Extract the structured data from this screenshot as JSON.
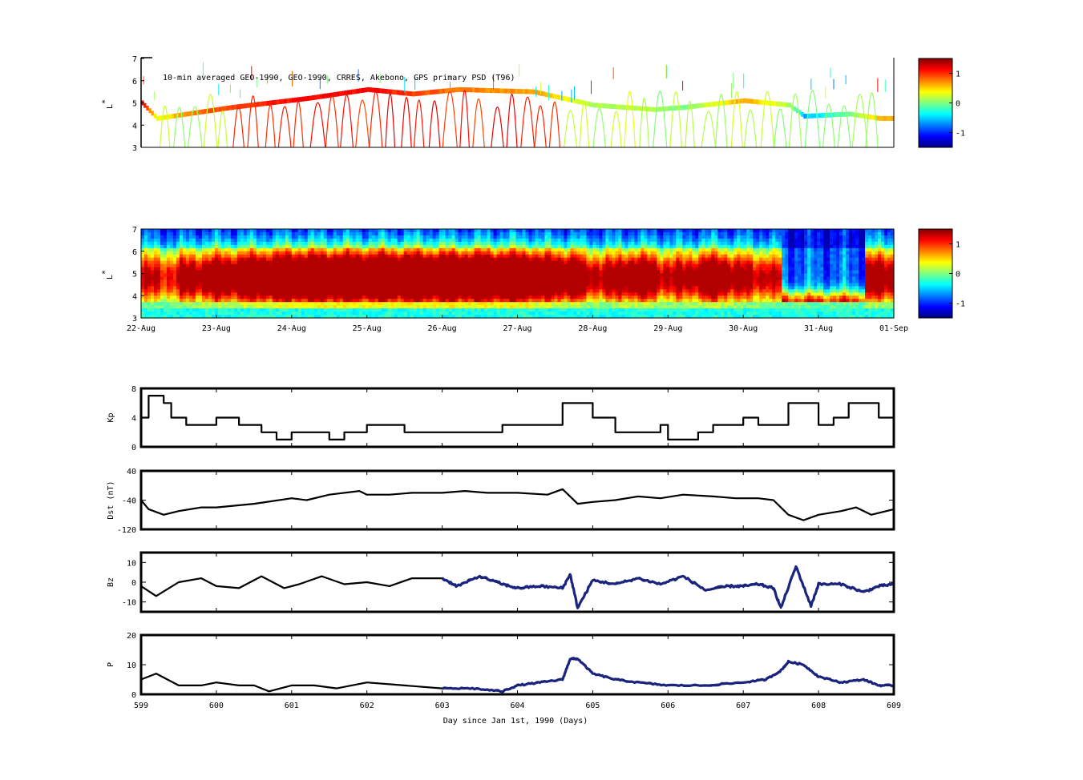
{
  "chart_data": [
    {
      "type": "heatmap",
      "id": "psd-observed",
      "title": "10-min averaged GEO-1990, GEO-1990, CRRES, Akebono, GPS primary PSD (T96)",
      "ylabel": "L*",
      "ylabel_main": "L",
      "ylabel_sup": "*",
      "yticks": [
        "3",
        "4",
        "5",
        "6",
        "7"
      ],
      "ylim": [
        3,
        7
      ],
      "colorbar": {
        "ticks": [
          "1",
          "0",
          "-1"
        ],
        "values": [
          1,
          0,
          -1
        ],
        "range": [
          -1.5,
          1.5
        ]
      }
    },
    {
      "type": "heatmap",
      "id": "psd-model",
      "ylabel": "L*",
      "ylabel_main": "L",
      "ylabel_sup": "*",
      "yticks": [
        "3",
        "4",
        "5",
        "6",
        "7"
      ],
      "ylim": [
        3,
        7
      ],
      "xticks": [
        "22-Aug",
        "23-Aug",
        "24-Aug",
        "25-Aug",
        "26-Aug",
        "27-Aug",
        "28-Aug",
        "29-Aug",
        "30-Aug",
        "31-Aug",
        "01-Sep"
      ],
      "colorbar": {
        "ticks": [
          "1",
          "0",
          "-1"
        ],
        "values": [
          1,
          0,
          -1
        ],
        "range": [
          -1.5,
          1.5
        ]
      }
    },
    {
      "type": "line",
      "id": "kp",
      "ylabel": "Kp",
      "ylim": [
        0,
        8
      ],
      "yticks": [
        "0",
        "4",
        "8"
      ],
      "x": [
        599,
        599.1,
        599.3,
        599.4,
        599.6,
        599.7,
        600,
        600.3,
        600.5,
        600.6,
        600.8,
        601,
        601.4,
        601.5,
        601.7,
        602,
        602.3,
        602.5,
        602.6,
        602.8,
        603,
        603.3,
        603.5,
        603.8,
        604.2,
        604.5,
        604.6,
        604.8,
        605,
        605.3,
        605.6,
        605.9,
        606,
        606.1,
        606.4,
        606.6,
        606.8,
        607,
        607.2,
        607.4,
        607.6,
        607.9,
        608,
        608.2,
        608.4,
        608.7,
        608.8,
        609
      ],
      "values": [
        4,
        7,
        6,
        4,
        3,
        3,
        4,
        3,
        3,
        2,
        1,
        2,
        2,
        1,
        2,
        3,
        3,
        2,
        2,
        2,
        2,
        2,
        2,
        3,
        3,
        3,
        6,
        6,
        4,
        2,
        2,
        3,
        1,
        1,
        2,
        3,
        3,
        4,
        3,
        3,
        6,
        6,
        3,
        4,
        6,
        6,
        4,
        5
      ]
    },
    {
      "type": "line",
      "id": "dst",
      "ylabel": "Dst (nT)",
      "ylim": [
        -120,
        40
      ],
      "yticks": [
        "-120",
        "-40",
        "40"
      ],
      "x": [
        599,
        599.1,
        599.3,
        599.5,
        599.8,
        600,
        600.5,
        601,
        601.2,
        601.5,
        601.9,
        602,
        602.3,
        602.6,
        603,
        603.3,
        603.6,
        604,
        604.4,
        604.6,
        604.8,
        605,
        605.3,
        605.6,
        605.9,
        606.2,
        606.6,
        606.9,
        607.2,
        607.4,
        607.6,
        607.8,
        608,
        608.3,
        608.5,
        608.7,
        609
      ],
      "values": [
        -40,
        -65,
        -80,
        -70,
        -60,
        -60,
        -50,
        -35,
        -40,
        -25,
        -15,
        -25,
        -25,
        -20,
        -20,
        -15,
        -20,
        -20,
        -25,
        -10,
        -50,
        -45,
        -40,
        -30,
        -35,
        -25,
        -30,
        -35,
        -35,
        -40,
        -80,
        -95,
        -80,
        -70,
        -60,
        -80,
        -65
      ]
    },
    {
      "type": "line",
      "id": "bz",
      "ylabel": "Bz",
      "ylim": [
        -15,
        15
      ],
      "yticks": [
        "-10",
        "0",
        "10"
      ],
      "x": [
        599,
        599.2,
        599.5,
        599.8,
        600,
        600.3,
        600.6,
        600.9,
        601.1,
        601.4,
        601.7,
        602,
        602.3,
        602.6,
        603,
        603.2,
        603.5,
        603.8,
        604,
        604.3,
        604.6,
        604.7,
        604.8,
        605,
        605.3,
        605.6,
        605.9,
        606.2,
        606.5,
        606.8,
        607,
        607.2,
        607.4,
        607.5,
        607.7,
        607.9,
        608,
        608.3,
        608.6,
        608.8,
        609
      ],
      "values": [
        -2,
        -7,
        0,
        2,
        -2,
        -3,
        3,
        -3,
        -1,
        3,
        -1,
        0,
        -2,
        2,
        2,
        -2,
        3,
        -1,
        -3,
        -2,
        -3,
        4,
        -13,
        1,
        -1,
        2,
        -1,
        3,
        -4,
        -2,
        -2,
        -1,
        -3,
        -13,
        8,
        -12,
        -1,
        -1,
        -5,
        -2,
        -1
      ]
    },
    {
      "type": "line",
      "id": "pdyn",
      "ylabel": "P",
      "ylim": [
        0,
        20
      ],
      "yticks": [
        "0",
        "10",
        "20"
      ],
      "xticks": [
        "599",
        "600",
        "601",
        "602",
        "603",
        "604",
        "605",
        "606",
        "607",
        "608",
        "609"
      ],
      "xlabel": "Day since Jan 1st, 1990 (Days)",
      "x": [
        599,
        599.2,
        599.5,
        599.8,
        600,
        600.3,
        600.5,
        600.7,
        601,
        601.3,
        601.6,
        602,
        602.5,
        603,
        603.4,
        603.8,
        604,
        604.3,
        604.6,
        604.7,
        604.8,
        605,
        605.3,
        605.6,
        606,
        606.5,
        607,
        607.3,
        607.5,
        607.6,
        607.8,
        608,
        608.3,
        608.6,
        608.8,
        609
      ],
      "values": [
        5,
        7,
        3,
        3,
        4,
        3,
        3,
        1,
        3,
        3,
        2,
        4,
        3,
        2,
        2,
        1,
        3,
        4,
        5,
        12,
        12,
        7,
        5,
        4,
        3,
        3,
        4,
        5,
        8,
        11,
        10,
        6,
        4,
        5,
        3,
        3
      ]
    }
  ]
}
